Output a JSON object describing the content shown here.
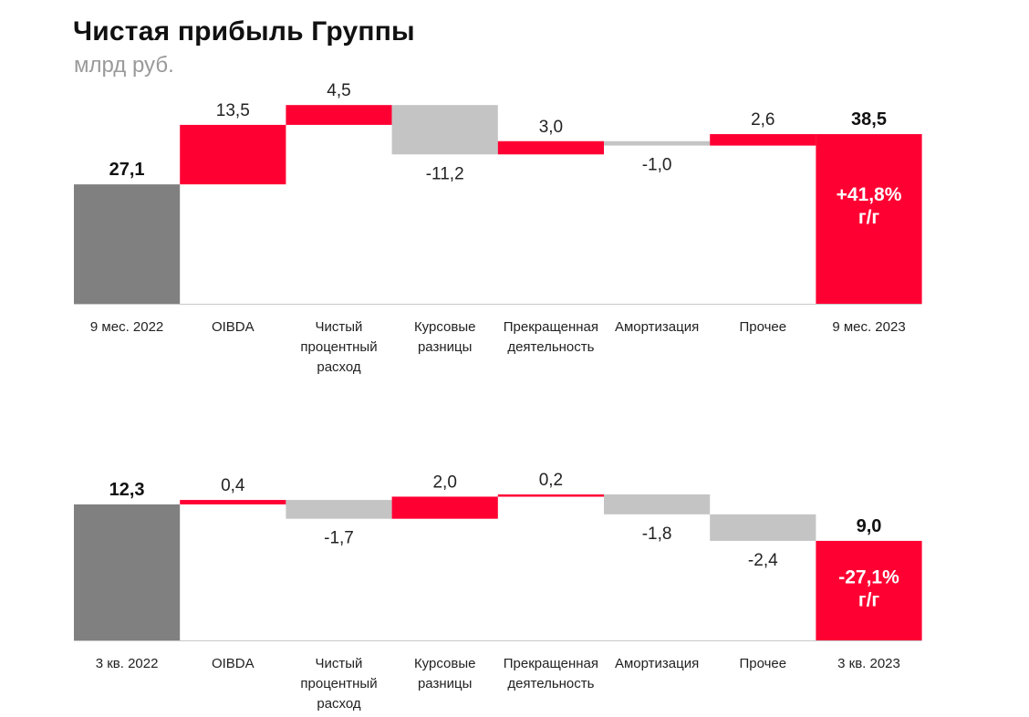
{
  "title": "Чистая прибыль Группы",
  "subtitle": "млрд руб.",
  "colors": {
    "total_start": "#808080",
    "total_end": "#ff0033",
    "positive": "#ff0033",
    "negative": "#c4c4c4",
    "axis": "#c8c8c8"
  },
  "chart_data": [
    {
      "type": "waterfall",
      "categories": [
        [
          "9 мес. 2022"
        ],
        [
          "OIBDA"
        ],
        [
          "Чистый",
          "процентный",
          "расход"
        ],
        [
          "Курсовые",
          "разницы"
        ],
        [
          "Прекращенная",
          "деятельность"
        ],
        [
          "Амортизация"
        ],
        [
          "Прочее"
        ],
        [
          "9 мес. 2023"
        ]
      ],
      "values": [
        27.1,
        13.5,
        4.5,
        -11.2,
        3.0,
        -1.0,
        2.6,
        38.5
      ],
      "kinds": [
        "total",
        "delta",
        "delta",
        "delta",
        "delta",
        "delta",
        "delta",
        "total"
      ],
      "labels": [
        "27,1",
        "13,5",
        "4,5",
        "-11,2",
        "3,0",
        "-1,0",
        "2,6",
        "38,5"
      ],
      "change_label": [
        "+41,8%",
        "г/г"
      ]
    },
    {
      "type": "waterfall",
      "categories": [
        [
          "3 кв. 2022"
        ],
        [
          "OIBDA"
        ],
        [
          "Чистый",
          "процентный",
          "расход"
        ],
        [
          "Курсовые",
          "разницы"
        ],
        [
          "Прекращенная",
          "деятельность"
        ],
        [
          "Амортизация"
        ],
        [
          "Прочее"
        ],
        [
          "3 кв. 2023"
        ]
      ],
      "values": [
        12.3,
        0.4,
        -1.7,
        2.0,
        0.2,
        -1.8,
        -2.4,
        9.0
      ],
      "kinds": [
        "total",
        "delta",
        "delta",
        "delta",
        "delta",
        "delta",
        "delta",
        "total"
      ],
      "labels": [
        "12,3",
        "0,4",
        "-1,7",
        "2,0",
        "0,2",
        "-1,8",
        "-2,4",
        "9,0"
      ],
      "change_label": [
        "-27,1%",
        "г/г"
      ]
    }
  ]
}
